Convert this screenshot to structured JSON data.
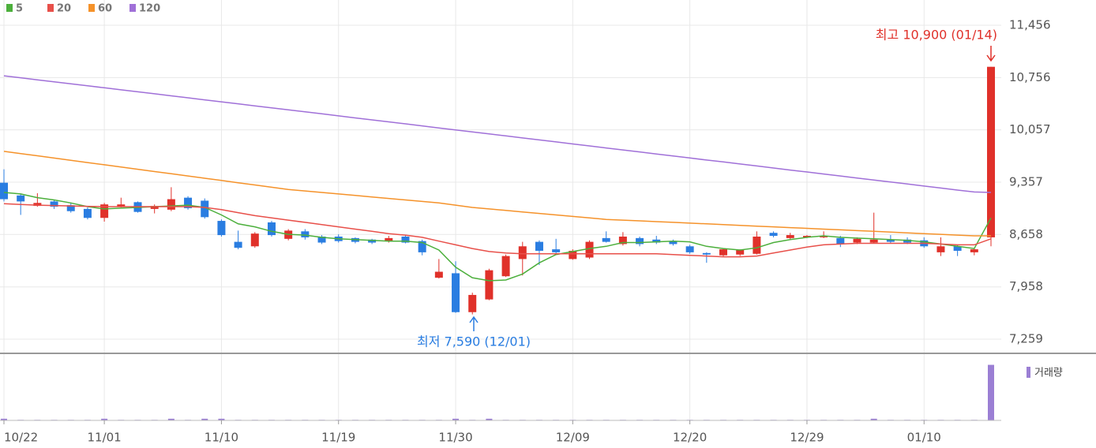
{
  "chart_data": {
    "type": "candlestick",
    "categories": [
      "10/22",
      null,
      null,
      null,
      null,
      null,
      "11/01",
      null,
      null,
      null,
      null,
      null,
      null,
      "11/10",
      null,
      null,
      null,
      null,
      null,
      null,
      "11/19",
      null,
      null,
      null,
      null,
      null,
      null,
      "11/30",
      null,
      null,
      null,
      null,
      null,
      null,
      "12/09",
      null,
      null,
      null,
      null,
      null,
      null,
      "12/20",
      null,
      null,
      null,
      null,
      null,
      null,
      "12/29",
      null,
      null,
      null,
      null,
      null,
      null,
      "01/10",
      null,
      null,
      null,
      null
    ],
    "open": [
      9350,
      9180,
      9040,
      9100,
      9050,
      9000,
      8880,
      9030,
      9090,
      9000,
      8990,
      9150,
      9110,
      8840,
      8560,
      8500,
      8820,
      8600,
      8700,
      8630,
      8630,
      8610,
      8590,
      8570,
      8630,
      8570,
      8080,
      8140,
      7620,
      7790,
      8100,
      8330,
      8560,
      8460,
      8330,
      8350,
      8610,
      8530,
      8610,
      8590,
      8570,
      8500,
      8410,
      8380,
      8390,
      8400,
      8680,
      8610,
      8620,
      8620,
      8610,
      8550,
      8550,
      8590,
      8590,
      8580,
      8420,
      8500,
      8420,
      8620
    ],
    "high": [
      9530,
      9200,
      9210,
      9120,
      9080,
      9020,
      9080,
      9150,
      9100,
      9060,
      9290,
      9170,
      9140,
      8860,
      8710,
      8690,
      8840,
      8730,
      8730,
      8650,
      8660,
      8620,
      8600,
      8640,
      8650,
      8590,
      8330,
      8300,
      7880,
      8200,
      8390,
      8560,
      8580,
      8600,
      8460,
      8580,
      8700,
      8690,
      8630,
      8640,
      8590,
      8520,
      8420,
      8470,
      8460,
      8700,
      8700,
      8680,
      8650,
      8700,
      8640,
      8620,
      8950,
      8650,
      8620,
      8620,
      8620,
      8520,
      8480,
      10900
    ],
    "low": [
      9100,
      8920,
      9030,
      9000,
      8950,
      8860,
      8830,
      9020,
      8950,
      8940,
      8970,
      8990,
      8870,
      8630,
      8460,
      8480,
      8630,
      8580,
      8590,
      8530,
      8550,
      8540,
      8530,
      8550,
      8540,
      8380,
      8070,
      7610,
      7590,
      7780,
      8090,
      8110,
      8250,
      8400,
      8320,
      8330,
      8550,
      8510,
      8500,
      8530,
      8510,
      8400,
      8280,
      8360,
      8370,
      8390,
      8620,
      8590,
      8610,
      8610,
      8490,
      8530,
      8540,
      8540,
      8530,
      8480,
      8370,
      8370,
      8380,
      8500
    ],
    "close": [
      9130,
      9100,
      9080,
      9030,
      8970,
      8880,
      9060,
      9060,
      8960,
      9040,
      9130,
      9010,
      8890,
      8650,
      8480,
      8670,
      8650,
      8710,
      8620,
      8550,
      8570,
      8560,
      8550,
      8610,
      8550,
      8420,
      8160,
      7620,
      7850,
      8180,
      8370,
      8500,
      8440,
      8420,
      8440,
      8560,
      8560,
      8630,
      8530,
      8550,
      8530,
      8420,
      8390,
      8460,
      8450,
      8630,
      8640,
      8650,
      8640,
      8640,
      8530,
      8600,
      8590,
      8560,
      8550,
      8500,
      8500,
      8440,
      8460,
      10900
    ],
    "up_color": "#e0312a",
    "down_color": "#2a7de1",
    "series": [
      {
        "name": "5",
        "color": "#4caf3c",
        "values": [
          9220,
          9200,
          9150,
          9120,
          9080,
          9030,
          9000,
          9010,
          9020,
          9030,
          9040,
          9050,
          9020,
          8920,
          8800,
          8760,
          8700,
          8660,
          8650,
          8620,
          8600,
          8590,
          8580,
          8570,
          8570,
          8550,
          8450,
          8220,
          8080,
          8040,
          8050,
          8130,
          8280,
          8390,
          8430,
          8470,
          8500,
          8550,
          8550,
          8560,
          8570,
          8560,
          8500,
          8470,
          8450,
          8480,
          8550,
          8590,
          8620,
          8640,
          8620,
          8610,
          8600,
          8590,
          8580,
          8560,
          8530,
          8500,
          8470,
          8880
        ]
      },
      {
        "name": "20",
        "color": "#e8504a",
        "values": [
          9070,
          9060,
          9050,
          9045,
          9040,
          9035,
          9030,
          9030,
          9030,
          9030,
          9030,
          9030,
          9020,
          8990,
          8950,
          8910,
          8880,
          8850,
          8820,
          8790,
          8760,
          8730,
          8700,
          8670,
          8650,
          8620,
          8570,
          8520,
          8470,
          8430,
          8410,
          8400,
          8400,
          8400,
          8400,
          8400,
          8400,
          8400,
          8400,
          8400,
          8390,
          8380,
          8370,
          8360,
          8360,
          8370,
          8410,
          8450,
          8490,
          8520,
          8530,
          8540,
          8540,
          8540,
          8540,
          8540,
          8530,
          8520,
          8520,
          8600
        ]
      },
      {
        "name": "60",
        "color": "#f5922a",
        "values": [
          9770,
          9740,
          9710,
          9680,
          9650,
          9620,
          9590,
          9560,
          9530,
          9500,
          9470,
          9440,
          9410,
          9380,
          9350,
          9320,
          9290,
          9260,
          9240,
          9220,
          9200,
          9180,
          9160,
          9140,
          9120,
          9100,
          9080,
          9050,
          9020,
          9000,
          8980,
          8960,
          8940,
          8920,
          8900,
          8880,
          8860,
          8850,
          8840,
          8830,
          8820,
          8810,
          8800,
          8790,
          8780,
          8770,
          8760,
          8750,
          8740,
          8730,
          8720,
          8710,
          8700,
          8690,
          8680,
          8670,
          8660,
          8650,
          8640,
          8640
        ]
      },
      {
        "name": "120",
        "color": "#a070d8",
        "values": [
          10780,
          10753,
          10726,
          10700,
          10673,
          10646,
          10619,
          10592,
          10566,
          10539,
          10512,
          10485,
          10458,
          10432,
          10405,
          10378,
          10351,
          10324,
          10298,
          10271,
          10244,
          10217,
          10190,
          10164,
          10137,
          10110,
          10083,
          10056,
          10030,
          10003,
          9976,
          9949,
          9922,
          9896,
          9869,
          9842,
          9815,
          9788,
          9762,
          9735,
          9708,
          9681,
          9654,
          9628,
          9601,
          9574,
          9547,
          9520,
          9494,
          9467,
          9440,
          9413,
          9386,
          9360,
          9333,
          9306,
          9279,
          9252,
          9226,
          9220
        ]
      }
    ],
    "volume": {
      "name": "거래량",
      "color": "#9b7fd4",
      "ylim": [
        0,
        115
      ],
      "values": [
        3,
        1,
        1,
        1,
        1,
        1,
        3,
        1,
        1,
        1,
        3,
        1,
        3,
        3,
        1,
        1,
        1,
        1,
        1,
        1,
        1,
        1,
        1,
        1,
        1,
        1,
        1,
        3,
        1,
        3,
        1,
        1,
        1,
        1,
        1,
        1,
        1,
        1,
        1,
        1,
        1,
        1,
        1,
        1,
        1,
        1,
        1,
        1,
        1,
        1,
        1,
        1,
        3,
        1,
        1,
        1,
        1,
        1,
        1,
        100
      ]
    },
    "ylim": [
      7069,
      11793
    ],
    "yticks": [
      {
        "value": 7259,
        "label": "7,259"
      },
      {
        "value": 7958,
        "label": "7,958"
      },
      {
        "value": 8658,
        "label": "8,658"
      },
      {
        "value": 9357,
        "label": "9,357"
      },
      {
        "value": 10057,
        "label": "10,057"
      },
      {
        "value": 10756,
        "label": "10,756"
      },
      {
        "value": 11456,
        "label": "11,456"
      }
    ],
    "grid": true,
    "annotations": {
      "high": "최고 10,900 (01/14)",
      "low": "최저 7,590 (12/01)"
    }
  }
}
